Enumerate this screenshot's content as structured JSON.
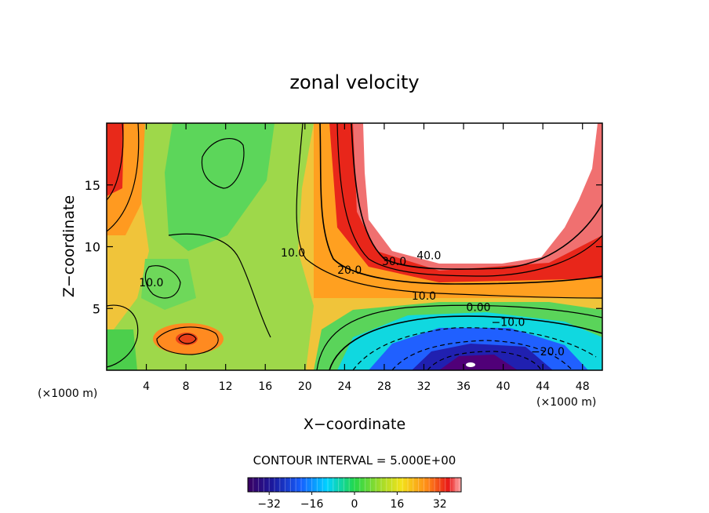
{
  "chart_data": {
    "type": "heatmap",
    "title": "zonal velocity",
    "xlabel": "X−coordinate",
    "ylabel": "Z−coordinate",
    "x_unit_left": "(×1000 m)",
    "x_unit_right": "(×1000 m)",
    "xlim": [
      0,
      50
    ],
    "ylim": [
      0,
      20
    ],
    "x_ticks": [
      4,
      8,
      12,
      16,
      20,
      24,
      28,
      32,
      36,
      40,
      44,
      48
    ],
    "x_tick_labels": [
      "4",
      "8",
      "12",
      "16",
      "20",
      "24",
      "28",
      "32",
      "36",
      "40",
      "44",
      "48"
    ],
    "y_ticks": [
      5,
      10,
      15
    ],
    "y_tick_labels": [
      "5",
      "10",
      "15"
    ],
    "contour_interval_label": "CONTOUR INTERVAL = 5.000E+00",
    "contour_interval": 5.0,
    "contour_labels": [
      {
        "text": "10.0",
        "x": 18.8,
        "y": 9.2
      },
      {
        "text": "10.0",
        "x": 4.5,
        "y": 6.8
      },
      {
        "text": "20.0",
        "x": 24.5,
        "y": 7.8
      },
      {
        "text": "30.0",
        "x": 29.0,
        "y": 8.5
      },
      {
        "text": "40.0",
        "x": 32.5,
        "y": 9.0
      },
      {
        "text": "10.0",
        "x": 32.0,
        "y": 5.7
      },
      {
        "text": "0.00",
        "x": 37.5,
        "y": 4.8
      },
      {
        "text": "−10.0",
        "x": 40.5,
        "y": 3.6
      },
      {
        "text": "−20.0",
        "x": 44.5,
        "y": 1.2
      }
    ],
    "colorbar": {
      "range": [
        -40,
        40
      ],
      "ticks": [
        -32,
        -16,
        0,
        16,
        32
      ],
      "tick_labels": [
        "−32",
        "−16",
        "0",
        "16",
        "32"
      ]
    }
  }
}
